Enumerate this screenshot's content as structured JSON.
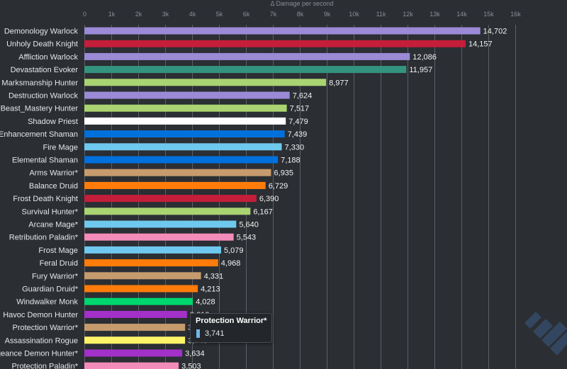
{
  "chart_data": {
    "type": "bar",
    "orientation": "horizontal",
    "xlabel": "Δ Damage per second",
    "xlim": [
      0,
      16000
    ],
    "ticks": [
      "0",
      "1k",
      "2k",
      "3k",
      "4k",
      "5k",
      "6k",
      "7k",
      "8k",
      "9k",
      "10k",
      "11k",
      "12k",
      "13k",
      "14k",
      "15k",
      "16k"
    ],
    "grid": true,
    "categories": [
      "Demonology Warlock",
      "Unholy Death Knight",
      "Affliction Warlock",
      "Devastation Evoker",
      "Marksmanship Hunter",
      "Destruction Warlock",
      "Beast_Mastery Hunter",
      "Shadow Priest",
      "Enhancement Shaman",
      "Fire Mage",
      "Elemental Shaman",
      "Arms Warrior*",
      "Balance Druid",
      "Frost Death Knight",
      "Survival Hunter*",
      "Arcane Mage*",
      "Retribution Paladin*",
      "Frost Mage",
      "Feral Druid",
      "Fury Warrior*",
      "Guardian Druid*",
      "Windwalker Monk",
      "Havoc Demon Hunter",
      "Protection Warrior*",
      "Assassination Rogue",
      "Vengeance Demon Hunter*",
      "Protection Paladin*"
    ],
    "values": [
      14702,
      14157,
      12086,
      11957,
      8977,
      7624,
      7517,
      7479,
      7439,
      7330,
      7188,
      6935,
      6729,
      6390,
      6167,
      5640,
      5543,
      5079,
      4968,
      4331,
      4213,
      4028,
      3813,
      3741,
      3740,
      3634,
      3503
    ],
    "value_labels": [
      "14,702",
      "14,157",
      "12,086",
      "11,957",
      "8,977",
      "7,624",
      "7,517",
      "7,479",
      "7,439",
      "7,330",
      "7,188",
      "6,935",
      "6,729",
      "6,390",
      "6,167",
      "5,640",
      "5,543",
      "5,079",
      "4,968",
      "4,331",
      "4,213",
      "4,028",
      "3,813",
      "3,741",
      "3,740",
      "3,634",
      "3,503"
    ],
    "colors": [
      "#9b8ad6",
      "#c41e3a",
      "#9b8ad6",
      "#33937f",
      "#aad372",
      "#9b8ad6",
      "#aad372",
      "#ffffff",
      "#0070dd",
      "#6fc8ee",
      "#0070dd",
      "#c69b6d",
      "#ff7c0a",
      "#c41e3a",
      "#aad372",
      "#6fc8ee",
      "#f48cba",
      "#6fc8ee",
      "#ff7c0a",
      "#c69b6d",
      "#ff7c0a",
      "#00d66e",
      "#a330c9",
      "#c69b6d",
      "#fff468",
      "#a330c9",
      "#f48cba"
    ]
  },
  "tooltip": {
    "title": "Protection Warrior*",
    "value": "3,741",
    "swatch_color": "#6fb7e8"
  }
}
